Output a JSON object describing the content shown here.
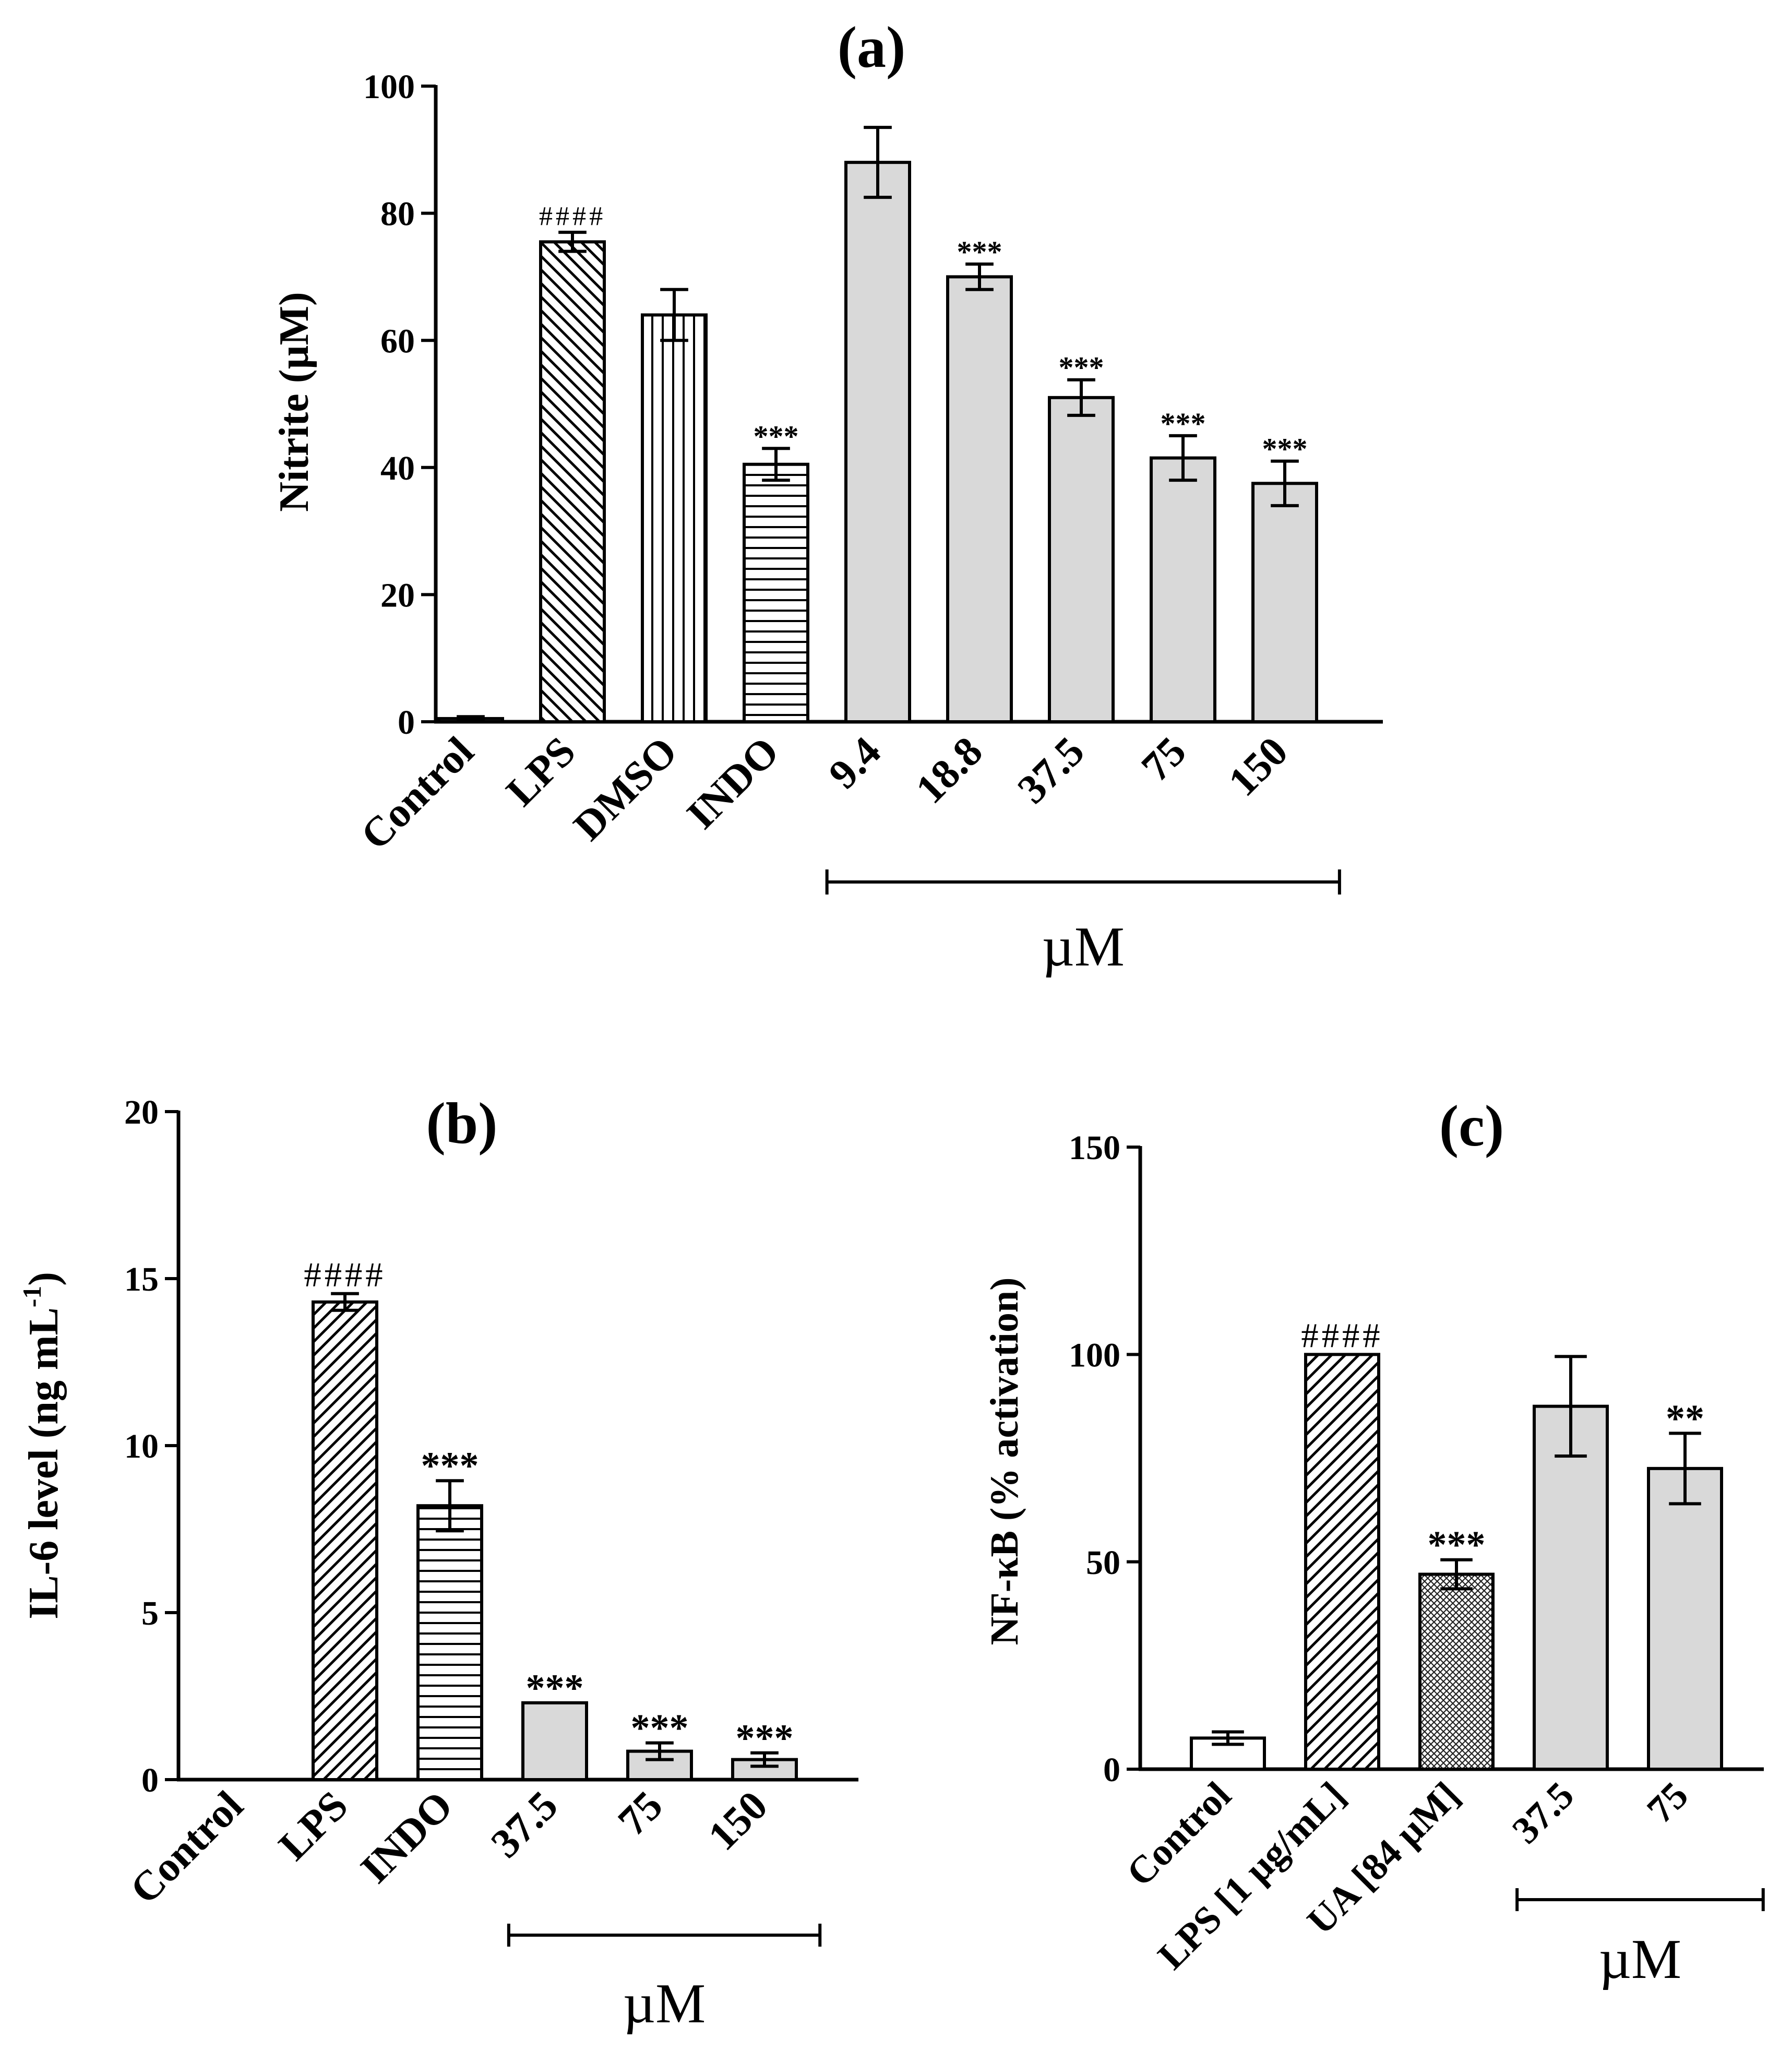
{
  "chart_data": [
    {
      "type": "bar",
      "title": "(a)",
      "ylabel": "Nitrite (µM)",
      "xlabel": "",
      "ylim": [
        0,
        100
      ],
      "yticks": [
        "0",
        "20",
        "40",
        "60",
        "80",
        "100"
      ],
      "categories": [
        "Control",
        "LPS",
        "DMSO",
        "INDO",
        "9.4",
        "18.8",
        "37.5",
        "75",
        "150"
      ],
      "values": [
        0.5,
        75.5,
        64,
        40.5,
        88,
        70,
        51,
        41.5,
        37.5
      ],
      "errors": [
        0.3,
        1.5,
        4,
        2.5,
        5.5,
        2,
        2.8,
        3.5,
        3.5
      ],
      "annotations": [
        "",
        "####",
        "",
        "***",
        "",
        "***",
        "***",
        "***",
        "***"
      ],
      "fills": [
        "white",
        "diag-back",
        "vertical",
        "horizontal",
        "gray",
        "gray",
        "gray",
        "gray",
        "gray"
      ],
      "bracket_label": "µM",
      "bracket_range": [
        "9.4",
        "150"
      ]
    },
    {
      "type": "bar",
      "title": "(b)",
      "ylabel": "IL-6 level (ng mL",
      "ylabel_sup": "-1",
      "ylabel_end": ")",
      "xlabel": "",
      "ylim": [
        0,
        20
      ],
      "yticks": [
        "0",
        "5",
        "10",
        "15",
        "20"
      ],
      "categories": [
        "Control",
        "LPS",
        "INDO",
        "37.5",
        "75",
        "150"
      ],
      "values": [
        0,
        14.3,
        8.2,
        2.3,
        0.85,
        0.6
      ],
      "errors": [
        0,
        0.25,
        0.75,
        0,
        0.25,
        0.2
      ],
      "annotations": [
        "",
        "####",
        "***",
        "***",
        "***",
        "***"
      ],
      "fills": [
        "white",
        "diag-fwd",
        "horizontal",
        "gray",
        "gray",
        "gray"
      ],
      "bracket_label": "µM",
      "bracket_range": [
        "37.5",
        "150"
      ]
    },
    {
      "type": "bar",
      "title": "(c)",
      "ylabel": "NF-κB (% activation)",
      "xlabel": "",
      "ylim": [
        0,
        150
      ],
      "yticks": [
        "0",
        "50",
        "100",
        "150"
      ],
      "categories": [
        "Control",
        "LPS [1 µg/mL]",
        "UA [84 µM]",
        "37.5",
        "75"
      ],
      "values": [
        7.5,
        100,
        47,
        87.5,
        72.5
      ],
      "errors": [
        1.5,
        0,
        3.5,
        12,
        8.5
      ],
      "annotations": [
        "",
        "####",
        "***",
        "",
        "**"
      ],
      "fills": [
        "white",
        "diag-fwd",
        "crosshatch",
        "gray",
        "gray"
      ],
      "bracket_label": "µM",
      "bracket_range": [
        "37.5",
        "75"
      ]
    }
  ]
}
